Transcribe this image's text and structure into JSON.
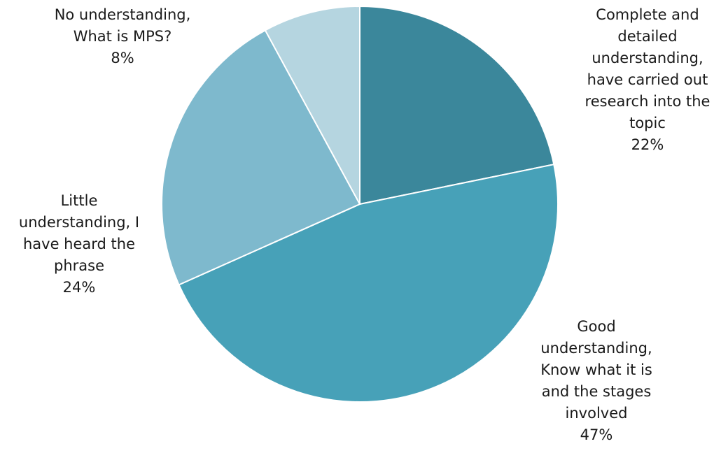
{
  "chart_data": {
    "type": "pie",
    "start_angle_deg": 0,
    "direction": "clockwise",
    "slices": [
      {
        "label_lines": [
          "Complete and",
          "detailed",
          "understanding,",
          "have carried out",
          "research into the",
          "topic"
        ],
        "percent_label": "22%",
        "value": 22,
        "color": "#3b879b"
      },
      {
        "label_lines": [
          "Good",
          "understanding,",
          "Know what it is",
          "and the stages",
          "involved"
        ],
        "percent_label": "47%",
        "value": 47,
        "color": "#47a1b8"
      },
      {
        "label_lines": [
          "Little",
          "understanding,  I",
          "have heard the",
          "phrase"
        ],
        "percent_label": "24%",
        "value": 24,
        "color": "#7eb9cd"
      },
      {
        "label_lines": [
          "No understanding,",
          "What is MPS?"
        ],
        "percent_label": "8%",
        "value": 8,
        "color": "#b5d5e0"
      }
    ]
  }
}
